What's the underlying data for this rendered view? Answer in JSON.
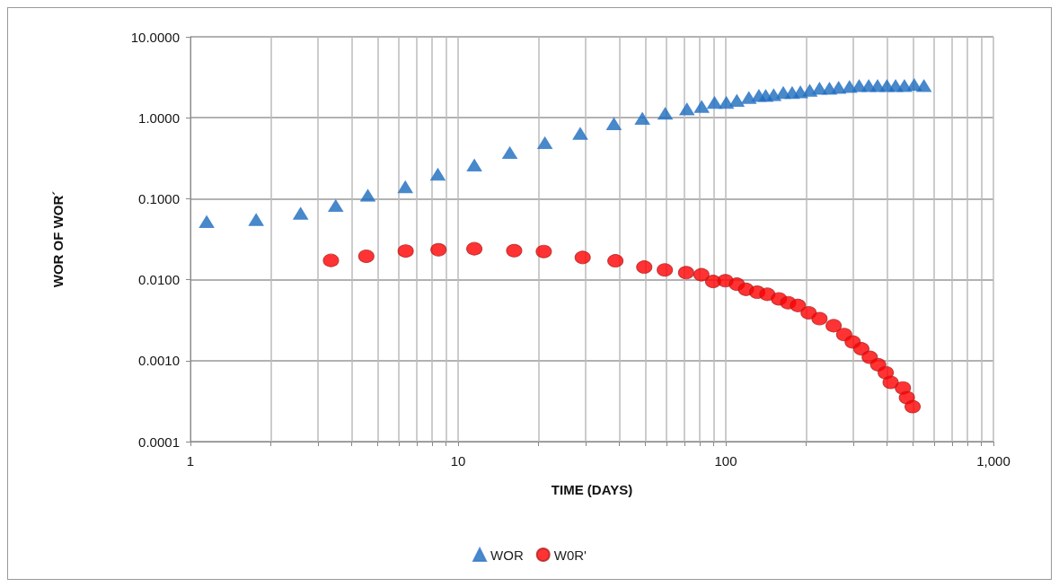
{
  "chart_data": {
    "type": "scatter",
    "xlabel": "TIME (DAYS)",
    "ylabel": "WOR OF WOR´",
    "log": "xy",
    "grid": true,
    "legend": "bottom",
    "xlim": [
      1,
      1000
    ],
    "ylim": [
      0.0001,
      10
    ],
    "xticks": [
      1,
      {
        "value": 2,
        "label": null
      },
      {
        "value": 3,
        "label": null
      },
      {
        "value": 4,
        "label": null
      },
      {
        "value": 5,
        "label": null
      },
      {
        "value": 6,
        "label": null
      },
      {
        "value": 7,
        "label": null
      },
      {
        "value": 8,
        "label": null
      },
      {
        "value": 9,
        "label": null
      },
      10,
      {
        "value": 20,
        "label": null
      },
      {
        "value": 30,
        "label": null
      },
      {
        "value": 40,
        "label": null
      },
      {
        "value": 50,
        "label": null
      },
      {
        "value": 60,
        "label": null
      },
      {
        "value": 70,
        "label": null
      },
      {
        "value": 80,
        "label": null
      },
      {
        "value": 90,
        "label": null
      },
      100,
      {
        "value": 200,
        "label": null
      },
      {
        "value": 300,
        "label": null
      },
      {
        "value": 400,
        "label": null
      },
      {
        "value": 500,
        "label": null
      },
      {
        "value": 600,
        "label": null
      },
      {
        "value": 700,
        "label": null
      },
      {
        "value": 800,
        "label": null
      },
      {
        "value": 900,
        "label": null
      },
      {
        "value": 1000,
        "label": "1,000"
      }
    ],
    "yticks": [
      {
        "value": 0.0001,
        "label": "0.0001"
      },
      {
        "value": 0.001,
        "label": "0.0010"
      },
      {
        "value": 0.01,
        "label": "0.0100"
      },
      {
        "value": 0.1,
        "label": "0.1000"
      },
      {
        "value": 1,
        "label": "1.0000"
      },
      {
        "value": 10,
        "label": "10.0000"
      }
    ],
    "series": [
      {
        "name": "WOR",
        "color": "#1a6bbd",
        "marker": "triangle",
        "x": [
          1.15,
          1.76,
          2.58,
          3.49,
          4.6,
          6.35,
          8.4,
          11.5,
          15.6,
          21.1,
          28.6,
          38.2,
          48.8,
          59.4,
          71.6,
          81.3,
          90.8,
          100.5,
          110,
          122,
          133,
          141,
          151,
          164,
          177,
          190,
          206,
          224,
          244,
          264,
          290,
          315,
          342,
          369,
          400,
          431,
          465,
          506,
          550
        ],
        "values": [
          0.052,
          0.055,
          0.066,
          0.082,
          0.11,
          0.14,
          0.2,
          0.26,
          0.37,
          0.49,
          0.64,
          0.84,
          0.98,
          1.13,
          1.28,
          1.37,
          1.54,
          1.54,
          1.63,
          1.77,
          1.88,
          1.88,
          1.92,
          2.04,
          2.04,
          2.08,
          2.17,
          2.3,
          2.3,
          2.36,
          2.42,
          2.49,
          2.49,
          2.49,
          2.49,
          2.49,
          2.49,
          2.56,
          2.49
        ]
      },
      {
        "name": "W0R'",
        "color": "#ff0000",
        "marker": "circle",
        "x": [
          3.35,
          4.54,
          6.37,
          8.45,
          11.5,
          16.2,
          20.9,
          29.2,
          38.7,
          49.6,
          59.2,
          71.1,
          81.1,
          89.7,
          99.7,
          110,
          119,
          131,
          143,
          158,
          171,
          186,
          204,
          224,
          253,
          277,
          298,
          321,
          345,
          371,
          396,
          413,
          459,
          475,
          499
        ],
        "values": [
          0.0173,
          0.0195,
          0.0226,
          0.0234,
          0.0241,
          0.0228,
          0.0223,
          0.0188,
          0.0171,
          0.0143,
          0.0132,
          0.0122,
          0.0115,
          0.0095,
          0.0097,
          0.0088,
          0.0076,
          0.007,
          0.0066,
          0.0058,
          0.0052,
          0.0048,
          0.0039,
          0.0033,
          0.0027,
          0.0021,
          0.0017,
          0.0014,
          0.0011,
          0.00089,
          0.00071,
          0.00054,
          0.00046,
          0.00035,
          0.00027
        ]
      }
    ]
  }
}
